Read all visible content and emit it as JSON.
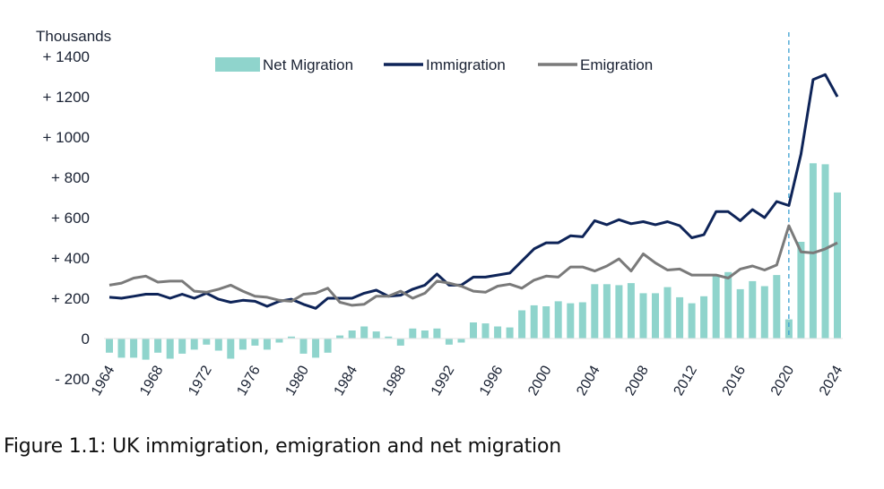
{
  "caption": "Figure 1.1: UK immigration, emigration and net migration",
  "chart_data": {
    "type": "bar+line",
    "ylabel": "Thousands",
    "ylim": [
      -200,
      1400
    ],
    "y_ticks": [
      {
        "value": 1400,
        "label": "+ 1400"
      },
      {
        "value": 1200,
        "label": "+ 1200"
      },
      {
        "value": 1000,
        "label": "+ 1000"
      },
      {
        "value": 800,
        "label": "+  800"
      },
      {
        "value": 600,
        "label": "+  600"
      },
      {
        "value": 400,
        "label": "+  400"
      },
      {
        "value": 200,
        "label": "+  200"
      },
      {
        "value": 0,
        "label": "0"
      },
      {
        "value": -200,
        "label": "-  200"
      }
    ],
    "x_tick_labels": [
      "1964",
      "1968",
      "1972",
      "1976",
      "1980",
      "1984",
      "1988",
      "1992",
      "1996",
      "2000",
      "2004",
      "2008",
      "2012",
      "2016",
      "2020",
      "2024"
    ],
    "grid": false,
    "legend_position": "top",
    "reference_line": {
      "x": 2020,
      "style": "dashed"
    },
    "x": [
      1964,
      1965,
      1966,
      1967,
      1968,
      1969,
      1970,
      1971,
      1972,
      1973,
      1974,
      1975,
      1976,
      1977,
      1978,
      1979,
      1980,
      1981,
      1982,
      1983,
      1984,
      1985,
      1986,
      1987,
      1988,
      1989,
      1990,
      1991,
      1992,
      1993,
      1994,
      1995,
      1996,
      1997,
      1998,
      1999,
      2000,
      2001,
      2002,
      2003,
      2004,
      2005,
      2006,
      2007,
      2008,
      2009,
      2010,
      2011,
      2012,
      2013,
      2014,
      2015,
      2016,
      2017,
      2018,
      2019,
      2020,
      2021,
      2022,
      2023,
      2024
    ],
    "series": [
      {
        "name": "Net Migration",
        "kind": "bar",
        "color": "#8fd4cc",
        "values": [
          -70,
          -95,
          -95,
          -105,
          -70,
          -100,
          -75,
          -55,
          -30,
          -60,
          -100,
          -55,
          -35,
          -55,
          -20,
          10,
          -75,
          -95,
          -70,
          15,
          40,
          60,
          35,
          10,
          -35,
          50,
          40,
          50,
          -30,
          -20,
          80,
          75,
          60,
          55,
          140,
          165,
          160,
          185,
          175,
          180,
          270,
          270,
          265,
          275,
          225,
          225,
          255,
          205,
          175,
          210,
          310,
          330,
          245,
          285,
          260,
          315,
          95,
          480,
          870,
          865,
          725
        ]
      },
      {
        "name": "Immigration",
        "kind": "line",
        "color": "#0e2458",
        "values": [
          205,
          200,
          210,
          220,
          220,
          200,
          220,
          200,
          225,
          195,
          180,
          190,
          185,
          160,
          185,
          195,
          170,
          150,
          200,
          200,
          200,
          225,
          240,
          210,
          215,
          245,
          265,
          320,
          265,
          265,
          305,
          305,
          315,
          325,
          385,
          445,
          475,
          475,
          510,
          505,
          585,
          565,
          590,
          570,
          580,
          565,
          580,
          560,
          500,
          515,
          630,
          630,
          585,
          640,
          600,
          680,
          660,
          915,
          1285,
          1310,
          1200
        ]
      },
      {
        "name": "Emigration",
        "kind": "line",
        "color": "#7a7a7a",
        "values": [
          265,
          275,
          300,
          310,
          280,
          285,
          285,
          235,
          230,
          245,
          265,
          235,
          210,
          205,
          190,
          185,
          220,
          225,
          250,
          180,
          165,
          170,
          210,
          210,
          235,
          200,
          225,
          285,
          275,
          260,
          235,
          230,
          260,
          270,
          250,
          290,
          310,
          305,
          355,
          355,
          335,
          360,
          395,
          335,
          420,
          375,
          340,
          345,
          315,
          315,
          315,
          300,
          345,
          360,
          340,
          365,
          560,
          430,
          425,
          445,
          475
        ]
      }
    ]
  }
}
